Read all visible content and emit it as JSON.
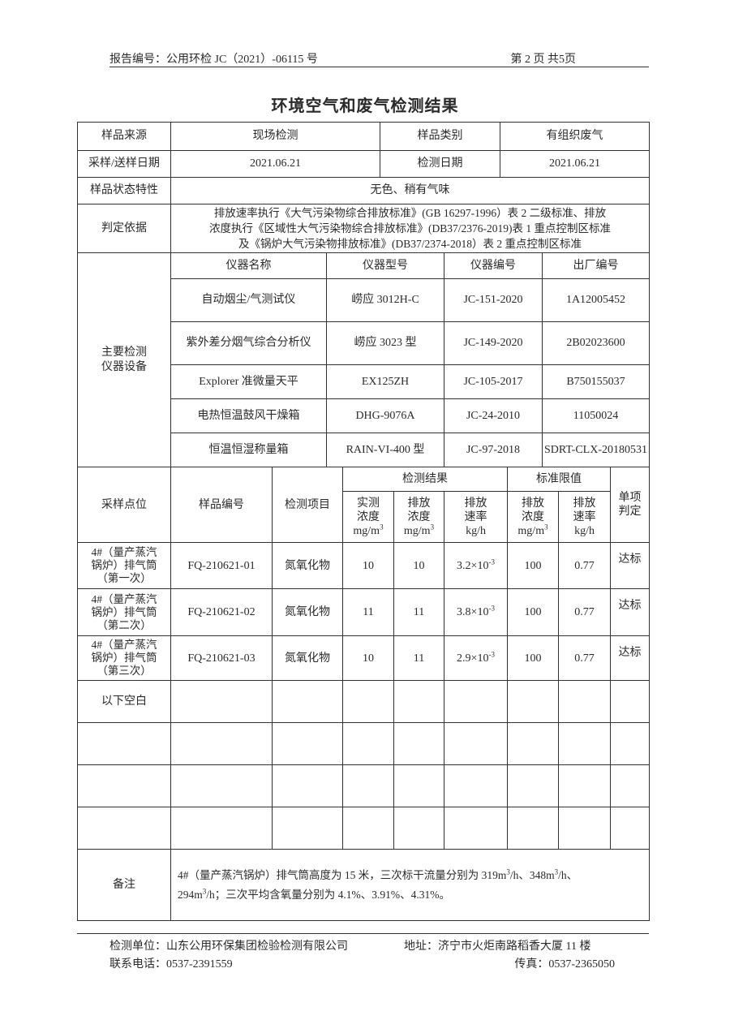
{
  "header": {
    "report_no": "报告编号：公用环检 JC（2021）-06115 号",
    "page": "第 2 页 共5页"
  },
  "title": "环境空气和废气检测结果",
  "info": {
    "source_label": "样品来源",
    "source_value": "现场检测",
    "category_label": "样品类别",
    "category_value": "有组织废气",
    "sample_date_label": "采样/送样日期",
    "sample_date_value": "2021.06.21",
    "test_date_label": "检测日期",
    "test_date_value": "2021.06.21",
    "state_label": "样品状态特性",
    "state_value": "无色、稍有气味",
    "basis_label": "判定依据",
    "basis_lines": [
      "排放速率执行《大气污染物综合排放标准》(GB 16297-1996）表 2 二级标准、排放",
      "浓度执行《区域性大气污染物综合排放标准》(DB37/2376-2019)表 1 重点控制区标准",
      "及《锅炉大气污染物排放标准》(DB37/2374-2018）表 2 重点控制区标准"
    ]
  },
  "instruments": {
    "label_line1": "主要检测",
    "label_line2": "仪器设备",
    "headers": [
      "仪器名称",
      "仪器型号",
      "仪器编号",
      "出厂编号"
    ],
    "rows": [
      [
        "自动烟尘/气测试仪",
        "崂应 3012H-C",
        "JC-151-2020",
        "1A12005452"
      ],
      [
        "紫外差分烟气综合分析仪",
        "崂应 3023 型",
        "JC-149-2020",
        "2B02023600"
      ],
      [
        "Explorer 准微量天平",
        "EX125ZH",
        "JC-105-2017",
        "B750155037"
      ],
      [
        "电热恒温鼓风干燥箱",
        "DHG-9076A",
        "JC-24-2010",
        "11050024"
      ],
      [
        "恒温恒湿称量箱",
        "RAIN-VI-400 型",
        "JC-97-2018",
        "SDRT-CLX-20180531"
      ]
    ]
  },
  "results": {
    "h_point": "采样点位",
    "h_sample_no": "样品编号",
    "h_item": "检测项目",
    "h_results": "检测结果",
    "h_limits": "标准限值",
    "h_judge_1": "单项",
    "h_judge_2": "判定",
    "h_meas_conc": [
      "实测",
      "浓度",
      "mg/m",
      "3"
    ],
    "h_emis_conc": [
      "排放",
      "浓度",
      "mg/m",
      "3"
    ],
    "h_emis_rate": [
      "排放",
      "速率",
      "kg/h"
    ],
    "h_lim_conc": [
      "排放",
      "浓度",
      "mg/m",
      "3"
    ],
    "h_lim_rate": [
      "排放",
      "速率",
      "kg/h"
    ],
    "rows": [
      {
        "point": [
          "4#（量产蒸汽",
          "锅炉）排气筒",
          "（第一次）"
        ],
        "sample_no": "FQ-210621-01",
        "item": "氮氧化物",
        "meas_conc": "10",
        "emis_conc": "10",
        "rate_base": "3.2×10",
        "rate_exp": "-3",
        "lim_conc": "100",
        "lim_rate": "0.77",
        "judge": "达标"
      },
      {
        "point": [
          "4#（量产蒸汽",
          "锅炉）排气筒",
          "（第二次）"
        ],
        "sample_no": "FQ-210621-02",
        "item": "氮氧化物",
        "meas_conc": "11",
        "emis_conc": "11",
        "rate_base": "3.8×10",
        "rate_exp": "-3",
        "lim_conc": "100",
        "lim_rate": "0.77",
        "judge": "达标"
      },
      {
        "point": [
          "4#（量产蒸汽",
          "锅炉）排气筒",
          "（第三次）"
        ],
        "sample_no": "FQ-210621-03",
        "item": "氮氧化物",
        "meas_conc": "10",
        "emis_conc": "11",
        "rate_base": "2.9×10",
        "rate_exp": "-3",
        "lim_conc": "100",
        "lim_rate": "0.77",
        "judge": "达标"
      }
    ],
    "blank_note": "以下空白"
  },
  "remarks": {
    "label": "备注",
    "line1_a": "4#（量产蒸汽锅炉）排气筒高度为 15 米，三次标干流量分别为 319m",
    "line1_b": "/h、348m",
    "line1_c": "/h、",
    "line2_a": "294m",
    "line2_b": "/h；三次平均含氧量分别为 4.1%、3.91%、4.31%。",
    "sup": "3"
  },
  "footer": {
    "unit": "检测单位：山东公用环保集团检验检测有限公司",
    "address": "地址：济宁市火炬南路稻香大厦 11 楼",
    "phone": "联系电话：0537-2391559",
    "fax": "传真：0537-2365050"
  }
}
